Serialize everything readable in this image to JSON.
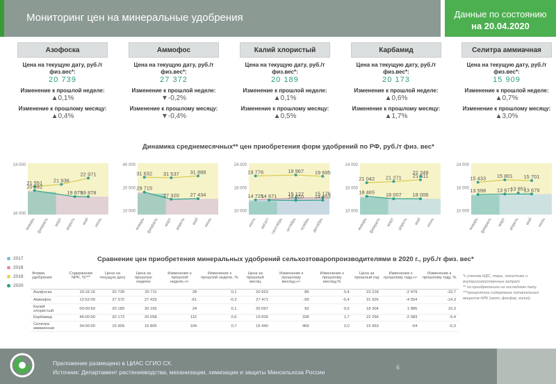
{
  "header": {
    "title": "Мониторинг цен на минеральные удобрения",
    "status_label": "Данные по состоянию",
    "status_date": "на 20.04.2020"
  },
  "cards": [
    {
      "name": "Азофоска",
      "price_label": "Цена на текущую дату, руб./т физ.вес*:",
      "price": "20 739",
      "week_label": "Изменение к прошлой неделе:",
      "week": "▲0,1%",
      "month_label": "Изменение к прошлому месяцу:",
      "month": "▲0,4%"
    },
    {
      "name": "Аммофос",
      "price_label": "Цена на текущую дату, руб./т физ.вес*:",
      "price": "27 372",
      "week_label": "Изменение к прошлой неделе:",
      "week": "▼-0,2%",
      "month_label": "Изменение к прошлому месяцу:",
      "month": "▼-0,4%"
    },
    {
      "name": "Калий хлористый",
      "price_label": "Цена на текущую дату, руб./т физ.вес*:",
      "price": "20 189",
      "week_label": "Изменение к прошлой неделе:",
      "week": "▲0,1%",
      "month_label": "Изменение к прошлому месяцу:",
      "month": "▲0,5%"
    },
    {
      "name": "Карбамид",
      "price_label": "Цена на текущую дату, руб./т физ.вес*:",
      "price": "20 173",
      "week_label": "Изменение к прошлой неделе:",
      "week": "▲0,6%",
      "month_label": "Изменение к прошлому месяцу:",
      "month": "▲1,7%"
    },
    {
      "name": "Селитра аммиачная",
      "price_label": "Цена на текущую дату, руб./т физ.вес*:",
      "price": "15 909",
      "week_label": "Изменение к прошлой неделе:",
      "week": "▲0,7%",
      "month_label": "Изменение к прошлому месяцу:",
      "month": "▲3,0%"
    }
  ],
  "dynamics_title": "Динамика среднемесячных** цен приобретения форм удобрений по РФ, руб./т физ. вес*",
  "chart_data": [
    {
      "type": "line",
      "yticks": [
        "24 000",
        "16 000"
      ],
      "categories": [
        "январь",
        "февраль",
        "март",
        "апрель",
        "май",
        "июнь"
      ],
      "series": [
        {
          "values": [
            21551,
            null,
            21936,
            null,
            22971,
            null
          ],
          "labels": [
            "21 551",
            "",
            "21 936",
            "",
            "22 971",
            ""
          ]
        },
        {
          "values": [
            20892,
            null,
            null,
            19879,
            19878,
            null
          ],
          "labels": [
            "20 892",
            "",
            "",
            "19 879",
            "19 878",
            ""
          ]
        }
      ]
    },
    {
      "type": "line",
      "yticks": [
        "40 000",
        "20 000",
        "10 000"
      ],
      "categories": [
        "январь",
        "февраль",
        "март",
        "апрель",
        "май",
        "июнь"
      ],
      "series": [
        {
          "values": [
            31632,
            null,
            31537,
            null,
            31888,
            null
          ],
          "labels": [
            "31 632",
            "",
            "31 537",
            "",
            "31 888",
            ""
          ]
        },
        {
          "values": [
            28715,
            null,
            27320,
            null,
            27434,
            null
          ],
          "labels": [
            "28 715",
            "",
            "27 320",
            "",
            "27 434",
            ""
          ]
        }
      ]
    },
    {
      "type": "line",
      "yticks": [
        "24 000",
        "16 000",
        "10 000"
      ],
      "categories": [
        "июль",
        "август",
        "сентябрь",
        "октябрь",
        "ноябрь",
        "декабрь"
      ],
      "series": [
        {
          "values": [
            19776,
            null,
            null,
            19967,
            null,
            19695
          ],
          "labels": [
            "19 776",
            "",
            "",
            "19 967",
            "",
            "19 695"
          ]
        },
        {
          "values": [
            14725,
            null,
            null,
            15127,
            null,
            15176
          ],
          "labels": [
            "14 725",
            "",
            "",
            "15 127",
            "",
            "15 176"
          ]
        },
        {
          "values": [
            null,
            14671,
            null,
            14620,
            null,
            14653
          ],
          "labels": [
            "",
            "14 671",
            "",
            "14 620",
            "",
            "14 653"
          ]
        }
      ]
    },
    {
      "type": "line",
      "yticks": [
        "24 000",
        "16 000",
        "10 000"
      ],
      "categories": [
        "январь",
        "февраль",
        "март",
        "апрель",
        "май",
        "июнь"
      ],
      "series": [
        {
          "values": [
            21042,
            null,
            21271,
            null,
            21611,
            null
          ],
          "labels": [
            "21 042",
            "",
            "21 271",
            "",
            "21 611",
            ""
          ]
        },
        {
          "values": [
            null,
            null,
            null,
            null,
            22249,
            null
          ],
          "labels": [
            "",
            "",
            "",
            "",
            "22 249",
            ""
          ]
        },
        {
          "values": [
            18465,
            null,
            18007,
            null,
            18006,
            null
          ],
          "labels": [
            "18 465",
            "",
            "18 007",
            "",
            "18 006",
            ""
          ]
        }
      ]
    },
    {
      "type": "line",
      "yticks": [
        "24 000",
        "16 000",
        "10 000"
      ],
      "categories": [
        "январь",
        "февраль",
        "март",
        "апрель",
        "май",
        "июнь"
      ],
      "series": [
        {
          "values": [
            15433,
            null,
            15801,
            null,
            15701,
            null
          ],
          "labels": [
            "15 433",
            "",
            "15 801",
            "",
            "15 701",
            ""
          ]
        },
        {
          "values": [
            null,
            null,
            null,
            13851,
            null,
            null
          ],
          "labels": [
            "",
            "",
            "",
            "13 851",
            "",
            ""
          ]
        },
        {
          "values": [
            13598,
            null,
            13677,
            null,
            13679,
            null
          ],
          "labels": [
            "13 598",
            "",
            "13 677",
            "",
            "13 679",
            ""
          ]
        }
      ]
    }
  ],
  "legend": [
    {
      "label": "2017",
      "color": "#7ab8d8"
    },
    {
      "label": "2018",
      "color": "#e08bb0"
    },
    {
      "label": "2019",
      "color": "#e8d04a"
    },
    {
      "label": "2020",
      "color": "#2aa08a"
    }
  ],
  "compare_title": "Сравнение цен приобретения минеральных удобрений сельхозтоваропроизводителями в 2020 г., руб./т физ. вес*",
  "table": {
    "headers": [
      "Форма удобрения",
      "Содержание NPK, %***",
      "Цена на текущую дату",
      "Цена за прошлую неделю",
      "Изменение к прошлой неделе,+/-",
      "Изменение к прошлой неделе, %",
      "Цена за прошлый месяц",
      "Изменение к прошлому месяцу,+/-",
      "Изменение к прошлому месяцу,%",
      "Цена за прошлый год",
      "Изменение к прошлому году,+/-",
      "Изменение к прошлому году, %"
    ],
    "rows": [
      [
        "Азофоска",
        "16:16:16",
        "20 739",
        "20 711",
        "28",
        "0,1",
        "20 653",
        "86",
        "0,4",
        "23 218",
        "-2 479",
        "-10,7"
      ],
      [
        "Аммофос",
        "12:52:00",
        "27 372",
        "27 433",
        "-61",
        "-0,2",
        "27 471",
        "-99",
        "-0,4",
        "31 926",
        "-4 554",
        "-14,3"
      ],
      [
        "Калий хлористый",
        "00:00:60",
        "20 189",
        "20 165",
        "24",
        "0,1",
        "20 097",
        "92",
        "0,5",
        "18 304",
        "1 885",
        "10,3"
      ],
      [
        "Карбамид",
        "46:00:00",
        "20 173",
        "20 058",
        "115",
        "0,6",
        "19 835",
        "338",
        "1,7",
        "22 256",
        "-2 083",
        "-9,4"
      ],
      [
        "Селитра аммиачная",
        "34:00:00",
        "15 909",
        "15 805",
        "104",
        "0,7",
        "15 440",
        "469",
        "3,0",
        "15 963",
        "-54",
        "-0,3"
      ]
    ]
  },
  "notes": [
    "*с учетом НДС, тары, логистики и внутрихозяйственных затрат",
    "** по приобретению на последнюю дату",
    "***процентное содержание питательных веществ NPK (азот, фосфор, калий)"
  ],
  "footer": {
    "line1": "Приложение размещено в ЦИАС СГИО СХ.",
    "line2": "Источник: Департамент растениеводства, механизации, химизации и защиты Минсельхоза России",
    "page": "6"
  }
}
